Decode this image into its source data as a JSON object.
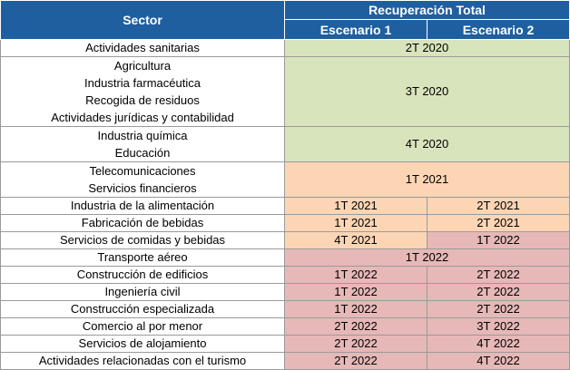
{
  "header": {
    "sector": "Sector",
    "recovery": "Recuperación Total",
    "scenario1": "Escenario 1",
    "scenario2": "Escenario 2"
  },
  "groups": [
    {
      "sectors": [
        "Actividades sanitarias"
      ],
      "value": "2T 2020"
    },
    {
      "sectors": [
        "Agricultura",
        "Industria farmacéutica",
        "Recogida de residuos",
        "Actividades jurídicas y contabilidad"
      ],
      "value": "3T 2020"
    },
    {
      "sectors": [
        "Industria química",
        "Educación"
      ],
      "value": "4T 2020"
    },
    {
      "sectors": [
        "Telecomunicaciones",
        "Servicios financieros"
      ],
      "value": "1T 2021"
    }
  ],
  "rows": [
    {
      "sector": "Industria de la alimentación",
      "e1": "1T 2021",
      "e2": "2T 2021"
    },
    {
      "sector": "Fabricación de bebidas",
      "e1": "1T 2021",
      "e2": "2T 2021"
    },
    {
      "sector": "Servicios de comidas y bebidas",
      "e1": "4T 2021",
      "e2": "1T 2022"
    },
    {
      "sector": "Transporte aéreo",
      "merged": "1T 2022"
    },
    {
      "sector": "Construcción de edificios",
      "e1": "1T 2022",
      "e2": "2T 2022"
    },
    {
      "sector": "Ingeniería civil",
      "e1": "1T 2022",
      "e2": "2T 2022"
    },
    {
      "sector": "Construcción especializada",
      "e1": "1T 2022",
      "e2": "2T 2022"
    },
    {
      "sector": "Comercio al por menor",
      "e1": "2T 2022",
      "e2": "3T 2022"
    },
    {
      "sector": "Servicios de alojamiento",
      "e1": "2T 2022",
      "e2": "4T 2022"
    },
    {
      "sector": "Actividades relacionadas con el turismo",
      "e1": "2T 2022",
      "e2": "4T 2022"
    }
  ],
  "colors": {
    "header": "#1f5fa0",
    "green": "#d8e4bc",
    "orange": "#fcd5b4",
    "red": "#e6b8b7"
  }
}
